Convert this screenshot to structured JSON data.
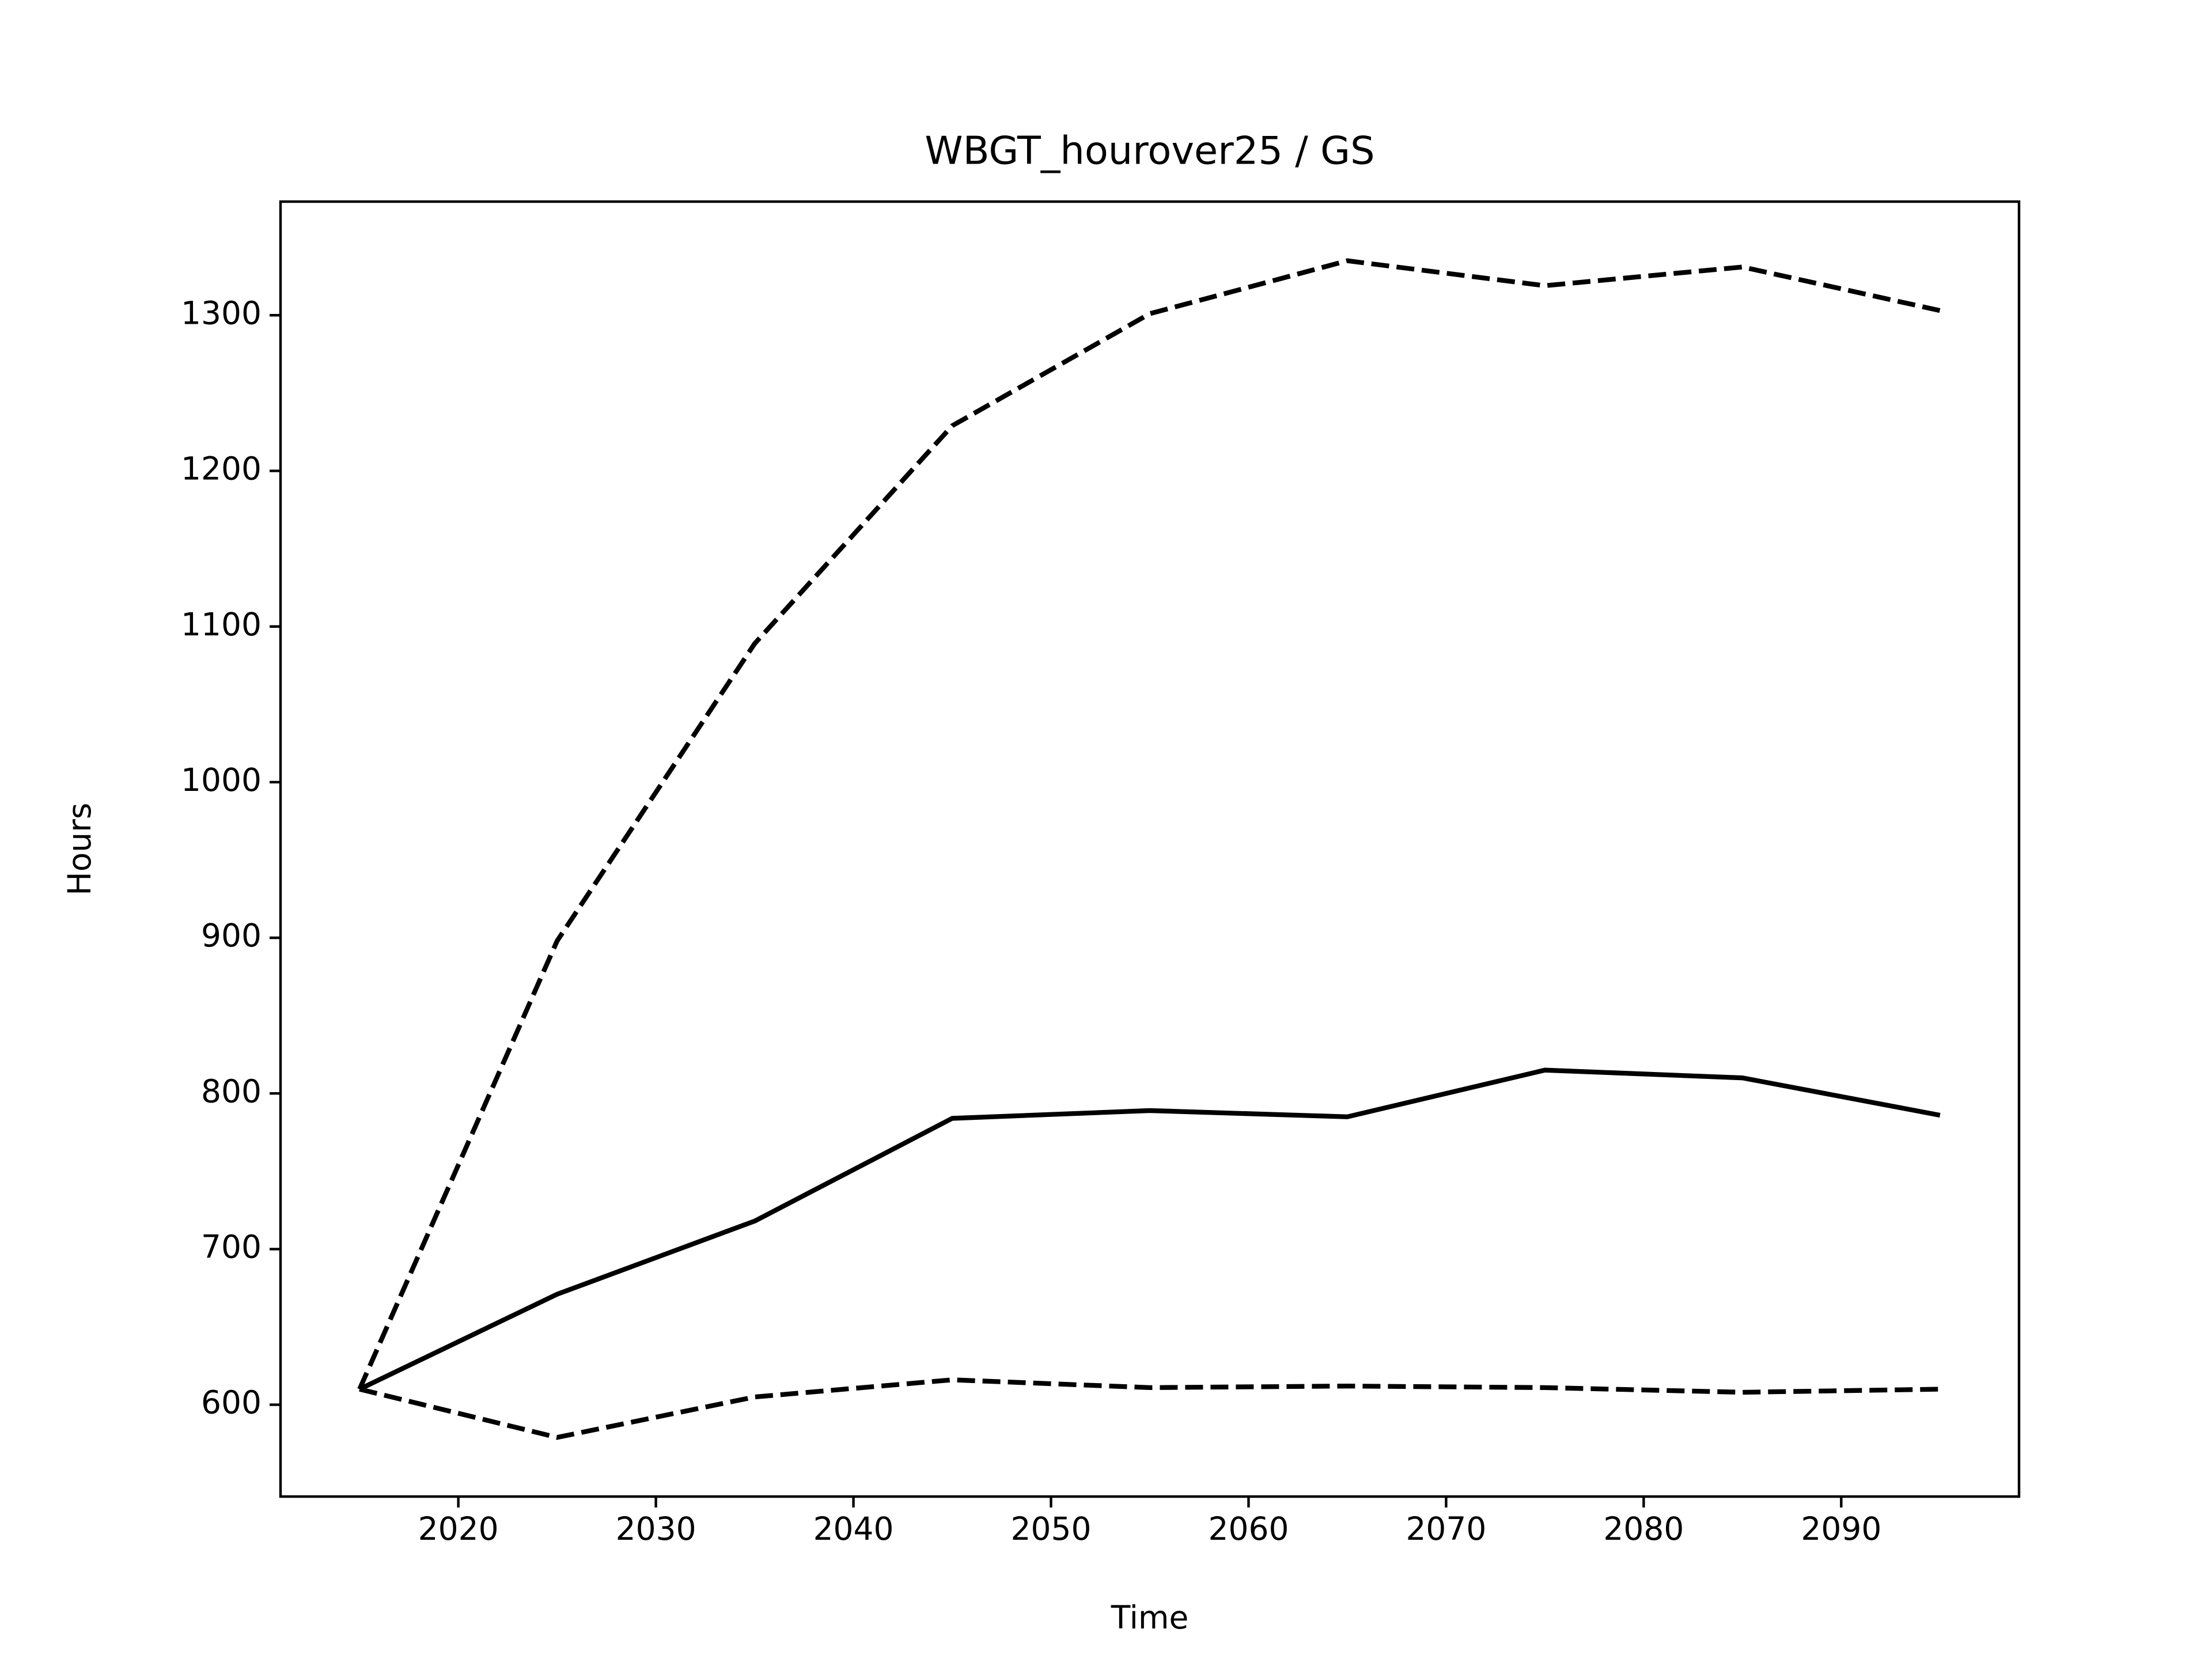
{
  "chart_data": {
    "type": "line",
    "title": "WBGT_hourover25 / GS",
    "x_label": "Time",
    "y_label": "Hours",
    "x": [
      2015,
      2025,
      2035,
      2045,
      2055,
      2065,
      2075,
      2085,
      2095
    ],
    "series": [
      {
        "color": "#000000",
        "linestyle": "solid",
        "values": [
          610,
          671,
          718,
          784,
          789,
          785,
          815,
          810,
          786
        ]
      },
      {
        "color": "#000000",
        "linestyle": "dashed",
        "values": [
          610,
          898,
          1089,
          1229,
          1301,
          1335,
          1319,
          1331,
          1303
        ]
      },
      {
        "color": "#000000",
        "linestyle": "dashed",
        "values": [
          610,
          579,
          605,
          616,
          611,
          612,
          611,
          608,
          610
        ]
      }
    ],
    "xlim": [
      2011,
      2099
    ],
    "xticks": [
      2020,
      2030,
      2040,
      2050,
      2060,
      2070,
      2080,
      2090
    ],
    "ylim": [
      541,
      1373
    ],
    "yticks": [
      600,
      700,
      800,
      900,
      1000,
      1100,
      1200,
      1300
    ],
    "grid": false
  }
}
